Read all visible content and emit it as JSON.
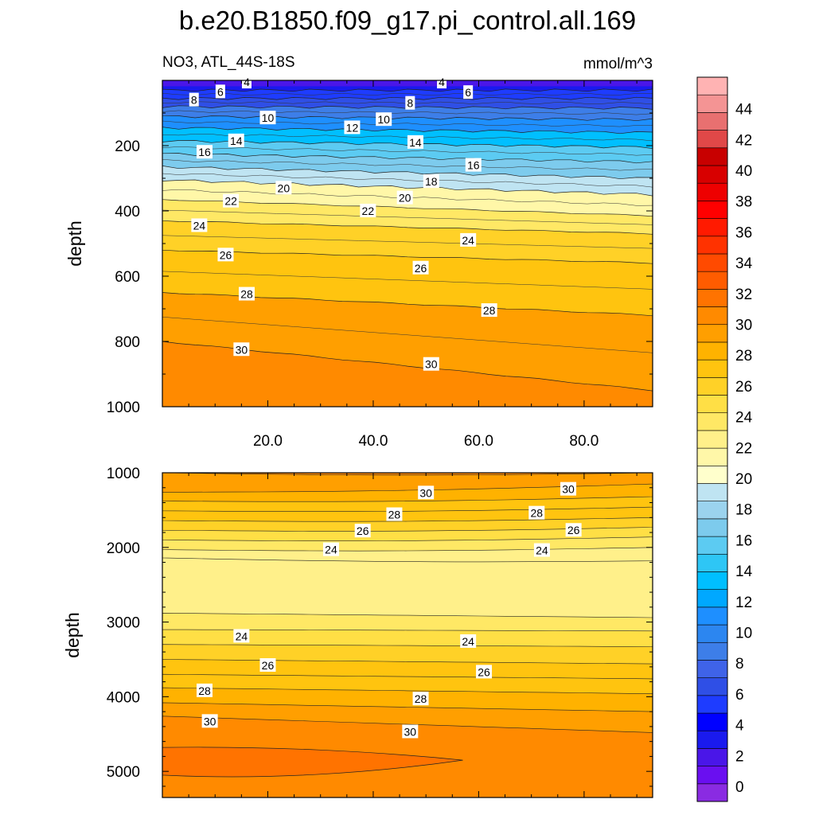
{
  "chart_data": [
    {
      "type": "heatmap",
      "panel": "upper",
      "title": "b.e20.B1850.f09_g17.pi_control.all.169",
      "left_label": "NO3, ATL_44S-18S",
      "right_label": "mmol/m^3",
      "ylabel": "depth",
      "xlabel": "",
      "ylim": [
        1000,
        0
      ],
      "xlim": [
        0,
        93
      ],
      "y_ticks": [
        "200",
        "400",
        "600",
        "800",
        "1000"
      ],
      "y_tick_values": [
        200,
        400,
        600,
        800,
        1000
      ],
      "x_ticks": [
        "20.0",
        "40.0",
        "60.0",
        "80.0"
      ],
      "x_tick_values": [
        20,
        40,
        60,
        80
      ],
      "contour_levels": [
        0,
        2,
        4,
        6,
        8,
        10,
        12,
        14,
        16,
        18,
        20,
        22,
        24,
        26,
        28,
        30
      ],
      "contour_depths_left": {
        "4": 30,
        "6": 55,
        "8": 80,
        "10": 110,
        "12": 145,
        "14": 185,
        "16": 225,
        "18": 265,
        "20": 305,
        "22": 365,
        "24": 430,
        "26": 520,
        "28": 650,
        "30": 800
      },
      "contour_depths_right": {
        "4": 30,
        "6": 55,
        "8": 85,
        "10": 120,
        "12": 160,
        "14": 205,
        "16": 250,
        "18": 300,
        "20": 350,
        "22": 415,
        "24": 470,
        "26": 560,
        "28": 720,
        "30": 950
      },
      "contour_labels": [
        {
          "value": "4",
          "x": 16,
          "d": 5
        },
        {
          "value": "4",
          "x": 53,
          "d": 5
        },
        {
          "value": "6",
          "x": 11,
          "d": 35
        },
        {
          "value": "6",
          "x": 58,
          "d": 37
        },
        {
          "value": "8",
          "x": 6,
          "d": 60
        },
        {
          "value": "8",
          "x": 47,
          "d": 70
        },
        {
          "value": "10",
          "x": 20,
          "d": 115
        },
        {
          "value": "10",
          "x": 42,
          "d": 120
        },
        {
          "value": "12",
          "x": 36,
          "d": 145
        },
        {
          "value": "14",
          "x": 14,
          "d": 185
        },
        {
          "value": "14",
          "x": 48,
          "d": 190
        },
        {
          "value": "16",
          "x": 8,
          "d": 220
        },
        {
          "value": "16",
          "x": 59,
          "d": 260
        },
        {
          "value": "18",
          "x": 51,
          "d": 310
        },
        {
          "value": "20",
          "x": 23,
          "d": 330
        },
        {
          "value": "20",
          "x": 46,
          "d": 360
        },
        {
          "value": "22",
          "x": 13,
          "d": 370
        },
        {
          "value": "22",
          "x": 39,
          "d": 400
        },
        {
          "value": "24",
          "x": 7,
          "d": 445
        },
        {
          "value": "24",
          "x": 58,
          "d": 490
        },
        {
          "value": "26",
          "x": 12,
          "d": 535
        },
        {
          "value": "26",
          "x": 49,
          "d": 575
        },
        {
          "value": "28",
          "x": 16,
          "d": 655
        },
        {
          "value": "28",
          "x": 62,
          "d": 705
        },
        {
          "value": "30",
          "x": 15,
          "d": 825
        },
        {
          "value": "30",
          "x": 51,
          "d": 870
        }
      ]
    },
    {
      "type": "heatmap",
      "panel": "lower",
      "ylabel": "depth",
      "ylim": [
        5350,
        1000
      ],
      "xlim": [
        0,
        93
      ],
      "y_ticks": [
        "1000",
        "2000",
        "3000",
        "4000",
        "5000"
      ],
      "y_tick_values": [
        1000,
        2000,
        3000,
        4000,
        5000
      ],
      "contour_labels": [
        {
          "value": "30",
          "x": 50,
          "d": 1270
        },
        {
          "value": "30",
          "x": 77,
          "d": 1220
        },
        {
          "value": "28",
          "x": 44,
          "d": 1560
        },
        {
          "value": "28",
          "x": 71,
          "d": 1540
        },
        {
          "value": "26",
          "x": 38,
          "d": 1780
        },
        {
          "value": "26",
          "x": 78,
          "d": 1770
        },
        {
          "value": "24",
          "x": 32,
          "d": 2030
        },
        {
          "value": "24",
          "x": 72,
          "d": 2040
        },
        {
          "value": "24",
          "x": 15,
          "d": 3190
        },
        {
          "value": "24",
          "x": 58,
          "d": 3260
        },
        {
          "value": "26",
          "x": 20,
          "d": 3580
        },
        {
          "value": "26",
          "x": 61,
          "d": 3670
        },
        {
          "value": "28",
          "x": 8,
          "d": 3920
        },
        {
          "value": "28",
          "x": 49,
          "d": 4030
        },
        {
          "value": "30",
          "x": 9,
          "d": 4330
        },
        {
          "value": "30",
          "x": 47,
          "d": 4470
        }
      ]
    }
  ],
  "colorbar": {
    "labels": [
      "0",
      "2",
      "4",
      "6",
      "8",
      "10",
      "12",
      "14",
      "16",
      "18",
      "20",
      "22",
      "24",
      "26",
      "28",
      "30",
      "32",
      "34",
      "36",
      "38",
      "40",
      "42",
      "44"
    ],
    "colors": [
      "#8a2be2",
      "#6a0ff0",
      "#4a16e8",
      "#1a1aee",
      "#0000ff",
      "#1e3cff",
      "#2f4fe6",
      "#3f63e8",
      "#3d7ee8",
      "#2c86f0",
      "#1e8fff",
      "#00a8ff",
      "#00bfff",
      "#2ec6f5",
      "#5ccbf2",
      "#7dcbed",
      "#9bd3ee",
      "#bfe4f2",
      "#ffffcc",
      "#fff7a8",
      "#fff08a",
      "#ffe865",
      "#ffdf45",
      "#ffd127",
      "#ffc40f",
      "#ffb200",
      "#ff9f00",
      "#ff8a00",
      "#ff7300",
      "#ff5c00",
      "#ff4a00",
      "#ff3200",
      "#ff1a00",
      "#ff0000",
      "#ee0000",
      "#d80000",
      "#c80000",
      "#e04848",
      "#e87070",
      "#f49494",
      "#ffb3b3"
    ],
    "level_step": 1.1
  }
}
